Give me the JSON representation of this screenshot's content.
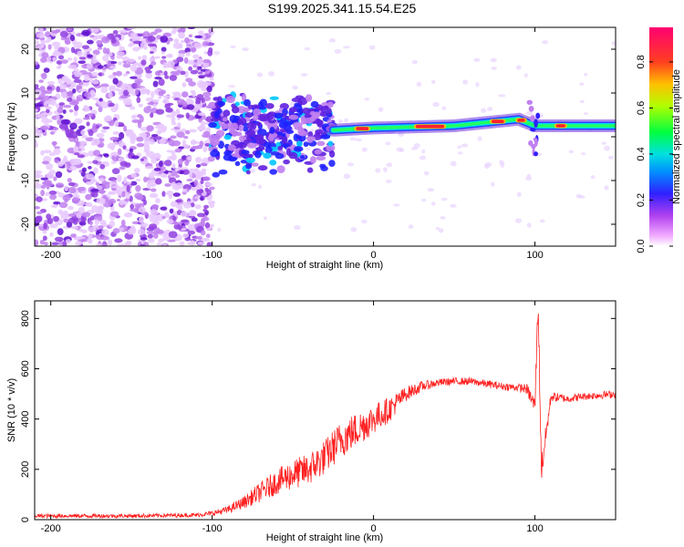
{
  "title": "S199.2025.341.15.54.E25",
  "chart_data": [
    {
      "type": "heatmap",
      "xlabel": "Height of straight line (km)",
      "ylabel": "Frequency (Hz)",
      "xlim": [
        -210,
        150
      ],
      "ylim": [
        -25,
        25
      ],
      "xticks": [
        -200,
        -100,
        0,
        100
      ],
      "xtick_labels": [
        "-200",
        "-100",
        "0",
        "100"
      ],
      "yticks": [
        -20,
        -10,
        0,
        10,
        20
      ],
      "ytick_labels": [
        "-20",
        "-10",
        "0",
        "10",
        "20"
      ],
      "colorbar": {
        "label": "Normalized spectral amplitude",
        "range": [
          0,
          0.95
        ],
        "ticks": [
          0,
          0.2,
          0.4,
          0.6,
          0.8
        ],
        "tick_labels": [
          "0.0",
          "0.2",
          "0.4",
          "0.6",
          "0.8"
        ],
        "colors": [
          "#ffffff",
          "#e060f0",
          "#8a2be2",
          "#3030ff",
          "#00c8ff",
          "#00ff60",
          "#c8ff00",
          "#ffc000",
          "#ff3030",
          "#ff0070"
        ]
      },
      "features": [
        {
          "region": "noise",
          "x_range": [
            -210,
            -100
          ],
          "freq_range": [
            -25,
            25
          ],
          "amplitude": 0.08
        },
        {
          "region": "transition",
          "x_range": [
            -100,
            -25
          ],
          "freq_range": [
            -8,
            12
          ],
          "amplitude": 0.2
        },
        {
          "region": "carrier",
          "x_points": [
            -25,
            0,
            50,
            90,
            100,
            150
          ],
          "freq_points": [
            1.5,
            2,
            2.5,
            4,
            2.5,
            2.5
          ],
          "amplitude": 0.9
        }
      ]
    },
    {
      "type": "line",
      "xlabel": "Height of straight line (km)",
      "ylabel": "SNR (10 * v/v)",
      "xlim": [
        -210,
        150
      ],
      "ylim": [
        0,
        870
      ],
      "xticks": [
        -200,
        -100,
        0,
        100
      ],
      "xtick_labels": [
        "-200",
        "-100",
        "0",
        "100"
      ],
      "yticks": [
        0,
        200,
        400,
        600,
        800
      ],
      "ytick_labels": [
        "0",
        "200",
        "400",
        "600",
        "800"
      ],
      "color": "#ff2020",
      "x": [
        -210,
        -150,
        -110,
        -100,
        -90,
        -80,
        -70,
        -60,
        -50,
        -40,
        -30,
        -20,
        -10,
        0,
        10,
        20,
        30,
        40,
        50,
        60,
        70,
        80,
        90,
        95,
        100,
        102,
        104,
        110,
        120,
        130,
        140,
        150
      ],
      "y": [
        15,
        15,
        18,
        25,
        40,
        70,
        110,
        150,
        180,
        200,
        250,
        320,
        360,
        400,
        440,
        500,
        530,
        545,
        550,
        550,
        540,
        530,
        525,
        520,
        450,
        870,
        200,
        490,
        480,
        490,
        495,
        500
      ],
      "spread": [
        8,
        8,
        8,
        10,
        15,
        25,
        40,
        50,
        60,
        65,
        70,
        75,
        70,
        60,
        50,
        30,
        20,
        15,
        15,
        15,
        15,
        15,
        15,
        20,
        40,
        60,
        60,
        20,
        15,
        15,
        15,
        15
      ]
    }
  ]
}
